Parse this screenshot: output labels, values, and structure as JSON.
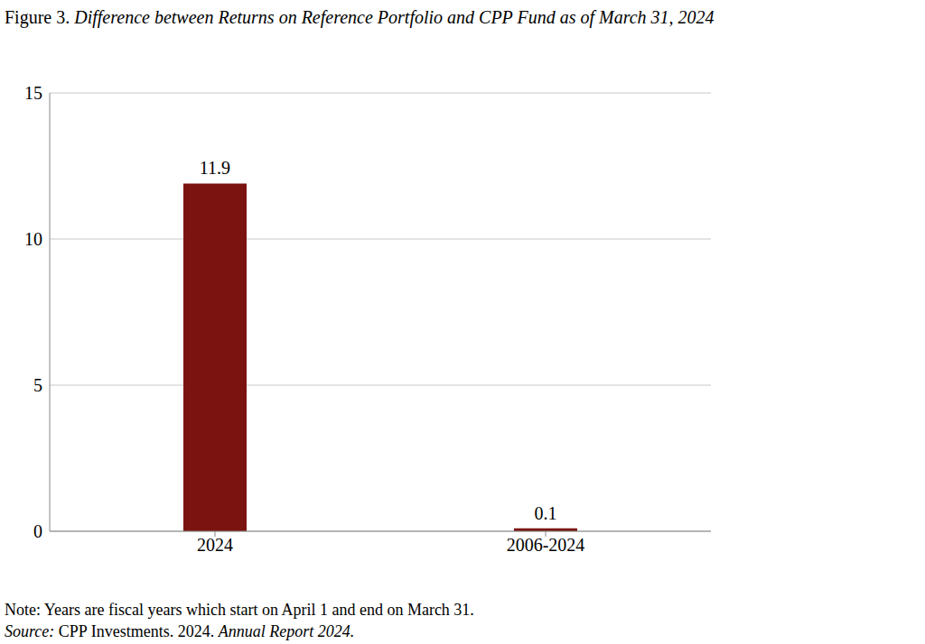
{
  "chart_data": {
    "type": "bar",
    "title_prefix": "Figure 3.",
    "title": "Difference between Returns on Reference Portfolio and CPP Fund as of March 31, 2024",
    "categories": [
      "2024",
      "2006-2024"
    ],
    "values": [
      11.9,
      0.1
    ],
    "color": "#7b1410",
    "ylim": [
      0,
      15
    ],
    "yticks": [
      0,
      5,
      10,
      15
    ],
    "grid": true,
    "data_labels": true,
    "note": "Note: Years are fiscal years which start on April 1 and end on March 31.",
    "source_label": "Source:",
    "source": "CPP Investments. 2024.",
    "source_publication": "Annual Report 2024."
  }
}
